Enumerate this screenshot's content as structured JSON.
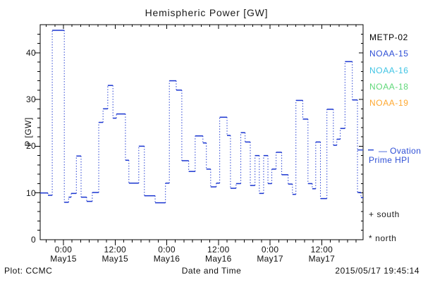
{
  "chart_data": {
    "type": "line",
    "subtype": "step-with-dotted-verticals",
    "title": "Hemispheric Power [GW]",
    "xlabel": "Date and Time",
    "ylabel": "P [GW]",
    "ylim": [
      0,
      46
    ],
    "y_major_ticks": [
      0,
      10,
      20,
      30,
      40
    ],
    "y_minor_step": 2,
    "xlim_hours_from_may15_0000": [
      -5.4,
      69.6
    ],
    "x_minor_step_hours": 2,
    "x_major_ticks": [
      {
        "hour": 0,
        "time": "0:00",
        "date": "May15"
      },
      {
        "hour": 12,
        "time": "12:00",
        "date": "May15"
      },
      {
        "hour": 24,
        "time": "0:00",
        "date": "May16"
      },
      {
        "hour": 36,
        "time": "12:00",
        "date": "May16"
      },
      {
        "hour": 48,
        "time": "0:00",
        "date": "May17"
      },
      {
        "hour": 60,
        "time": "12:00",
        "date": "May17"
      }
    ],
    "grid": false,
    "series": [
      {
        "name": "Ovation Prime HPI (NOAA-15)",
        "color": "#1a35d0",
        "segments_t0_t1_gw": [
          [
            -5.4,
            -3.6,
            10.0
          ],
          [
            -3.6,
            -2.6,
            9.5
          ],
          [
            -2.6,
            0.2,
            44.8
          ],
          [
            0.2,
            1.2,
            8.0
          ],
          [
            1.2,
            1.8,
            9.1
          ],
          [
            1.8,
            3.0,
            9.9
          ],
          [
            3.0,
            4.1,
            17.9
          ],
          [
            4.1,
            5.4,
            9.1
          ],
          [
            5.4,
            6.7,
            8.2
          ],
          [
            6.7,
            8.2,
            10.1
          ],
          [
            8.2,
            9.2,
            25.1
          ],
          [
            9.2,
            10.3,
            28.0
          ],
          [
            10.3,
            11.5,
            33.0
          ],
          [
            11.5,
            12.3,
            26.0
          ],
          [
            12.3,
            14.4,
            26.9
          ],
          [
            14.4,
            15.2,
            17.0
          ],
          [
            15.2,
            17.5,
            12.1
          ],
          [
            17.5,
            18.8,
            20.0
          ],
          [
            18.8,
            21.3,
            9.4
          ],
          [
            21.3,
            23.7,
            7.9
          ],
          [
            23.7,
            24.6,
            12.1
          ],
          [
            24.6,
            26.2,
            34.0
          ],
          [
            26.2,
            27.5,
            32.0
          ],
          [
            27.5,
            29.1,
            16.9
          ],
          [
            29.1,
            30.6,
            14.6
          ],
          [
            30.6,
            32.4,
            22.2
          ],
          [
            32.4,
            33.2,
            20.7
          ],
          [
            33.2,
            34.2,
            15.1
          ],
          [
            34.2,
            35.5,
            11.3
          ],
          [
            35.5,
            36.3,
            12.1
          ],
          [
            36.3,
            38.0,
            26.2
          ],
          [
            38.0,
            38.8,
            22.3
          ],
          [
            38.8,
            40.1,
            11.0
          ],
          [
            40.1,
            41.2,
            12.0
          ],
          [
            41.2,
            42.2,
            22.9
          ],
          [
            42.2,
            43.4,
            20.9
          ],
          [
            43.4,
            44.5,
            11.6
          ],
          [
            44.5,
            45.5,
            18.0
          ],
          [
            45.5,
            46.5,
            9.9
          ],
          [
            46.5,
            47.5,
            18.0
          ],
          [
            47.5,
            48.4,
            12.0
          ],
          [
            48.4,
            49.4,
            15.1
          ],
          [
            49.4,
            50.7,
            18.7
          ],
          [
            50.7,
            52.2,
            13.9
          ],
          [
            52.2,
            53.2,
            11.9
          ],
          [
            53.2,
            54.0,
            9.7
          ],
          [
            54.0,
            55.6,
            29.8
          ],
          [
            55.6,
            56.8,
            25.8
          ],
          [
            56.8,
            57.8,
            12.0
          ],
          [
            57.8,
            58.6,
            10.9
          ],
          [
            58.6,
            59.7,
            20.9
          ],
          [
            59.7,
            61.2,
            8.8
          ],
          [
            61.2,
            62.7,
            27.9
          ],
          [
            62.7,
            63.5,
            20.2
          ],
          [
            63.5,
            64.3,
            21.5
          ],
          [
            64.3,
            65.4,
            23.8
          ],
          [
            65.4,
            67.1,
            38.1
          ],
          [
            67.1,
            68.3,
            29.9
          ],
          [
            68.3,
            69.1,
            10.1
          ],
          [
            69.1,
            69.6,
            9.0
          ]
        ]
      }
    ],
    "legend": [
      {
        "label": "METP-02",
        "color": "#000000"
      },
      {
        "label": "NOAA-15",
        "color": "#2e4fd6"
      },
      {
        "label": "NOAA-16",
        "color": "#3fc4e4"
      },
      {
        "label": "NOAA-18",
        "color": "#5fd878"
      },
      {
        "label": "NOAA-19",
        "color": "#ffa830"
      }
    ],
    "legend_position": "right-outside",
    "annotations": {
      "ovation": {
        "line1": "— Ovation",
        "line2": "Prime HPI",
        "color": "#2e4fd6",
        "marker_value_gw": 19.2
      },
      "south": "+ south",
      "north": "* north"
    },
    "footer": {
      "credit": "Plot: CCMC",
      "timestamp": "2015/05/17 19:45:14"
    }
  }
}
